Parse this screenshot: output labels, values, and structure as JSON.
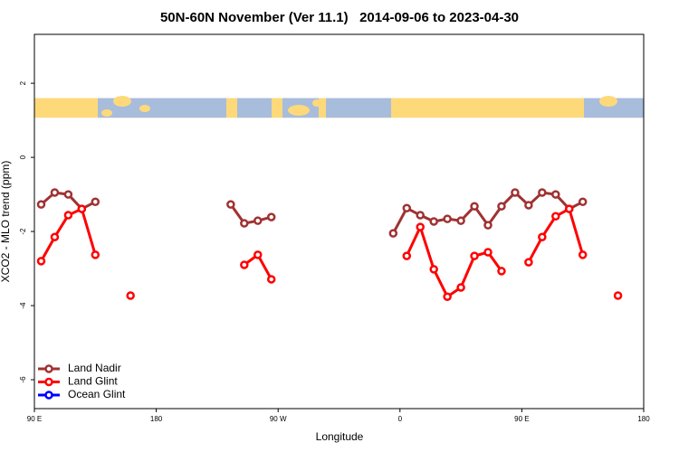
{
  "chart_data": {
    "type": "line",
    "title": "50N-60N November (Ver 11.1)   2014-09-06 to 2023-04-30",
    "x_label": "Longitude",
    "y_label": "XCO2 - MLO trend (ppm)",
    "xlim": [
      90,
      540
    ],
    "ylim": [
      -6.78,
      3.32
    ],
    "xticks": [
      {
        "value": 90,
        "label": "90 E"
      },
      180,
      {
        "value": 270,
        "label": "90 W"
      },
      {
        "value": 360,
        "label": "0"
      },
      {
        "value": 450,
        "label": "90 E"
      },
      {
        "value": 540,
        "label": "180"
      }
    ],
    "yticks": [
      -6,
      -4,
      -2,
      0,
      2
    ],
    "band": {
      "ymin": 1.07,
      "ymax": 1.6
    },
    "legend": "bottom-left",
    "series": [
      {
        "name": "Land Nadir",
        "color": "#a03232",
        "x": [
          95,
          105,
          115,
          125,
          135,
          145,
          235,
          245,
          255,
          265,
          275,
          355,
          365,
          375,
          385,
          395,
          405,
          415,
          425,
          435,
          445,
          455,
          465,
          475,
          485,
          495
        ],
        "values": [
          -1.27,
          -0.95,
          -1.0,
          -1.39,
          -1.2,
          null,
          -1.27,
          -1.78,
          -1.71,
          -1.61,
          null,
          -2.05,
          -1.37,
          -1.56,
          -1.73,
          -1.66,
          -1.71,
          -1.32,
          -1.83,
          -1.32,
          -0.95,
          -1.29,
          -0.95,
          -1.0,
          -1.39,
          -1.2
        ]
      },
      {
        "name": "Land Glint",
        "color": "#ff0000",
        "x": [
          95,
          105,
          115,
          125,
          135,
          145,
          161,
          170,
          245,
          255,
          265,
          275,
          365,
          375,
          385,
          395,
          405,
          415,
          425,
          435,
          445,
          455,
          465,
          475,
          485,
          495,
          505,
          521
        ],
        "values": [
          -2.8,
          -2.15,
          -1.56,
          -1.39,
          -2.63,
          null,
          -3.73,
          null,
          -2.9,
          -2.63,
          -3.29,
          null,
          -2.66,
          -1.88,
          -3.02,
          -3.76,
          -3.51,
          -2.66,
          -2.56,
          -3.07,
          null,
          -2.83,
          -2.15,
          -1.59,
          -1.39,
          -2.63,
          null,
          -3.73
        ]
      },
      {
        "name": "Ocean Glint",
        "color": "#0000ff",
        "x": [],
        "values": []
      }
    ]
  }
}
